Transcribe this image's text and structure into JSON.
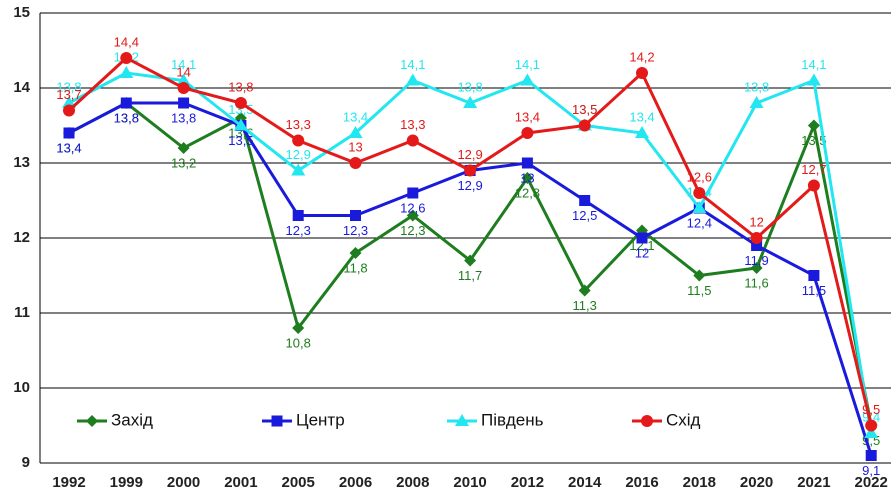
{
  "chart_data": {
    "type": "line",
    "categories": [
      "1992",
      "1999",
      "2000",
      "2001",
      "2005",
      "2006",
      "2008",
      "2010",
      "2012",
      "2014",
      "2016",
      "2018",
      "2020",
      "2021",
      "2022"
    ],
    "series": [
      {
        "name": "Захід",
        "color": "#1e7d1e",
        "marker": "diamond",
        "values": [
          13.4,
          13.8,
          13.2,
          13.6,
          10.8,
          11.8,
          12.3,
          11.7,
          12.8,
          11.3,
          12.1,
          11.5,
          11.6,
          13.5,
          9.5
        ],
        "value_labels": [
          "13,4",
          "13,8",
          "13,2",
          "13,6",
          "10,8",
          "11,8",
          "12,3",
          "11,7",
          "12,8",
          "11,3",
          "12,1",
          "11,5",
          "11,6",
          "13,5",
          "9,5"
        ]
      },
      {
        "name": "Центр",
        "color": "#1a1adc",
        "marker": "square",
        "values": [
          13.4,
          13.8,
          13.8,
          13.5,
          12.3,
          12.3,
          12.6,
          12.9,
          13,
          12.5,
          12,
          12.4,
          11.9,
          11.5,
          9.1
        ],
        "value_labels": [
          "13,4",
          "13,8",
          "13,8",
          "13,5",
          "12,3",
          "12,3",
          "12,6",
          "12,9",
          "13",
          "12,5",
          "12",
          "12,4",
          "11,9",
          "11,5",
          "9,1"
        ]
      },
      {
        "name": "Південь",
        "color": "#22e6f0",
        "marker": "triangle",
        "values": [
          13.8,
          14.2,
          14.1,
          13.5,
          12.9,
          13.4,
          14.1,
          13.8,
          14.1,
          13.5,
          13.4,
          12.4,
          13.8,
          14.1,
          9.4
        ],
        "value_labels": [
          "13,8",
          "14,2",
          "14,1",
          "13,5",
          "12,9",
          "13,4",
          "14,1",
          "13,8",
          "14,1",
          "13,5",
          "13,4",
          "12,4",
          "13,8",
          "14,1",
          "9,4"
        ]
      },
      {
        "name": "Схід",
        "color": "#e41a1a",
        "marker": "circle",
        "values": [
          13.7,
          14.4,
          14,
          13.8,
          13.3,
          13,
          13.3,
          12.9,
          13.4,
          13.5,
          14.2,
          12.6,
          12,
          12.7,
          9.5
        ],
        "value_labels": [
          "13,7",
          "14,4",
          "14",
          "13,8",
          "13,3",
          "13",
          "13,3",
          "12,9",
          "13,4",
          "13,5",
          "14,2",
          "12,6",
          "12",
          "12,7",
          "9,5"
        ]
      }
    ],
    "ylim": [
      9,
      15
    ],
    "yticks": [
      9,
      10,
      11,
      12,
      13,
      14,
      15
    ],
    "grid": true,
    "legend": "lower left"
  }
}
